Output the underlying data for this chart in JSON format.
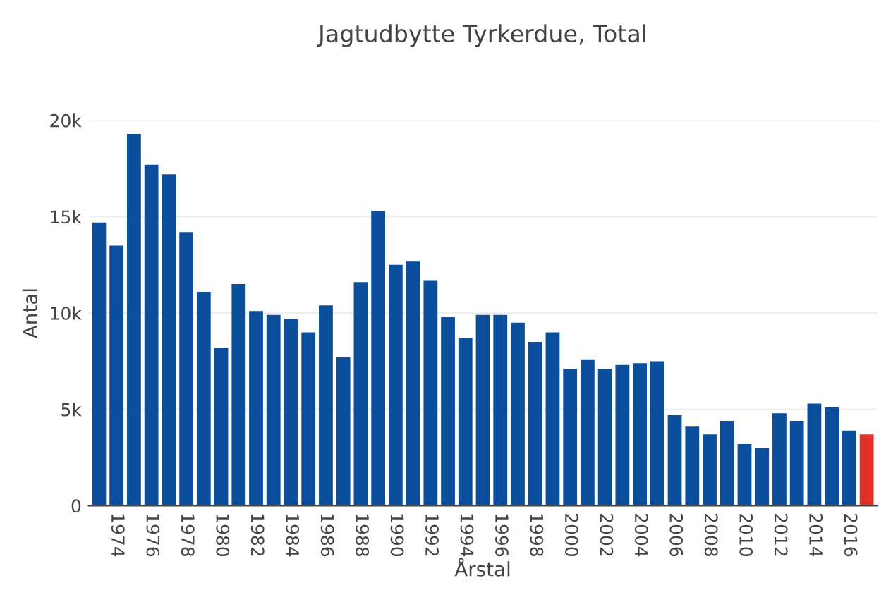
{
  "chart_data": {
    "type": "bar",
    "title": "Jagtudbytte Tyrkerdue, Total",
    "xlabel": "Årstal",
    "ylabel": "Antal",
    "categories": [
      null,
      "1974",
      null,
      "1976",
      null,
      "1978",
      null,
      "1980",
      null,
      "1982",
      null,
      "1984",
      null,
      "1986",
      null,
      "1988",
      null,
      "1990",
      null,
      "1992",
      null,
      "1994",
      null,
      "1996",
      null,
      "1998",
      null,
      "2000",
      null,
      "2002",
      null,
      "2004",
      null,
      "2006",
      null,
      "2008",
      null,
      "2010",
      null,
      "2012",
      null,
      "2014",
      null,
      "2016",
      null
    ],
    "values": [
      14700,
      13500,
      19300,
      17700,
      17200,
      14200,
      11100,
      8200,
      11500,
      10100,
      9900,
      9700,
      9000,
      10400,
      7700,
      11600,
      15300,
      12500,
      12700,
      11700,
      9800,
      8700,
      9900,
      9900,
      9500,
      8500,
      9000,
      7100,
      7600,
      7100,
      7300,
      7400,
      7500,
      4700,
      4100,
      3700,
      4400,
      3200,
      3000,
      4800,
      4400,
      5300,
      5100,
      3900,
      3700
    ],
    "colors": [
      "#0b4f9c",
      "#0b4f9c",
      "#0b4f9c",
      "#0b4f9c",
      "#0b4f9c",
      "#0b4f9c",
      "#0b4f9c",
      "#0b4f9c",
      "#0b4f9c",
      "#0b4f9c",
      "#0b4f9c",
      "#0b4f9c",
      "#0b4f9c",
      "#0b4f9c",
      "#0b4f9c",
      "#0b4f9c",
      "#0b4f9c",
      "#0b4f9c",
      "#0b4f9c",
      "#0b4f9c",
      "#0b4f9c",
      "#0b4f9c",
      "#0b4f9c",
      "#0b4f9c",
      "#0b4f9c",
      "#0b4f9c",
      "#0b4f9c",
      "#0b4f9c",
      "#0b4f9c",
      "#0b4f9c",
      "#0b4f9c",
      "#0b4f9c",
      "#0b4f9c",
      "#0b4f9c",
      "#0b4f9c",
      "#0b4f9c",
      "#0b4f9c",
      "#0b4f9c",
      "#0b4f9c",
      "#0b4f9c",
      "#0b4f9c",
      "#0b4f9c",
      "#0b4f9c",
      "#0b4f9c",
      "#e0302a"
    ],
    "ylim": [
      0,
      20000
    ],
    "yticks": [
      {
        "value": 0,
        "label": "0"
      },
      {
        "value": 5000,
        "label": "5k"
      },
      {
        "value": 10000,
        "label": "10k"
      },
      {
        "value": 15000,
        "label": "15k"
      },
      {
        "value": 20000,
        "label": "20k"
      }
    ],
    "grid": "y",
    "legend": false
  }
}
